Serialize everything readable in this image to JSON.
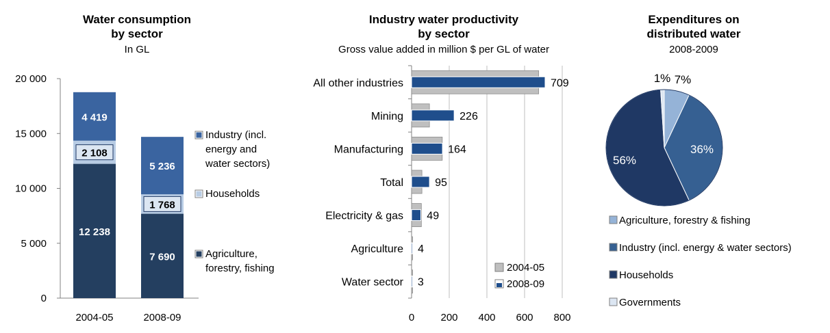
{
  "charts": [
    {
      "title_line1": "Water consumption",
      "title_line2": "by sector",
      "subtitle": "In GL"
    },
    {
      "title_line1": "Industry water productivity",
      "title_line2": "by sector",
      "subtitle": "Gross value added in million $ per GL of water"
    },
    {
      "title_line1": "Expenditures on",
      "title_line2": "distributed water",
      "subtitle": "2008-2009"
    }
  ],
  "legend1": [
    {
      "lines": [
        "Industry (incl.",
        "energy and",
        "water sectors)"
      ],
      "color": "#3a64a0"
    },
    {
      "lines": [
        "Households"
      ],
      "color": "#b8cce4"
    },
    {
      "lines": [
        "Agriculture,",
        "forestry, fishing"
      ],
      "color": "#243f60"
    }
  ],
  "legend3": [
    {
      "label": "Agriculture, forestry & fishing",
      "color": "#95b3d7"
    },
    {
      "label": "Industry (incl. energy & water sectors)",
      "color": "#366092"
    },
    {
      "label": "Households",
      "color": "#1f3864"
    },
    {
      "label": "Governments",
      "color": "#dce6f2"
    }
  ],
  "chart_data": [
    {
      "type": "bar",
      "stacked": true,
      "title": "Water consumption by sector",
      "subtitle": "In GL",
      "categories": [
        "2004-05",
        "2008-09"
      ],
      "series": [
        {
          "name": "Agriculture, forestry, fishing",
          "values": [
            12238,
            7690
          ],
          "labels": [
            "12 238",
            "7 690"
          ],
          "color": "#243f60"
        },
        {
          "name": "Households",
          "values": [
            2108,
            1768
          ],
          "labels": [
            "2 108",
            "1 768"
          ],
          "color": "#b8cce4"
        },
        {
          "name": "Industry (incl. energy and water sectors)",
          "values": [
            4419,
            5236
          ],
          "labels": [
            "4 419",
            "5 236"
          ],
          "color": "#3a64a0"
        }
      ],
      "ylim": [
        0,
        20000
      ],
      "yticks": [
        0,
        5000,
        10000,
        15000,
        20000
      ],
      "ytick_labels": [
        "0",
        "5 000",
        "10 000",
        "15 000",
        "20 000"
      ],
      "grid": false,
      "legend": "right"
    },
    {
      "type": "bar",
      "orientation": "horizontal",
      "title": "Industry water productivity by sector",
      "subtitle": "Gross value added in million $ per GL of water",
      "categories": [
        "All other industries",
        "Mining",
        "Manufacturing",
        "Total",
        "Electricity & gas",
        "Agriculture",
        "Water sector"
      ],
      "series": [
        {
          "name": "2004-05",
          "values": [
            675,
            95,
            163,
            55,
            52,
            4,
            3
          ],
          "color": "#bfbfbf"
        },
        {
          "name": "2008-09",
          "values": [
            709,
            226,
            164,
            95,
            49,
            4,
            3
          ],
          "labels": [
            "709",
            "226",
            "164",
            "95",
            "49",
            "4",
            "3"
          ],
          "color": "#1f4e8c"
        }
      ],
      "xlim": [
        0,
        800
      ],
      "xticks": [
        0,
        200,
        400,
        600,
        800
      ],
      "grid": true,
      "legend": "bottom-right"
    },
    {
      "type": "pie",
      "title": "Expenditures on distributed water",
      "subtitle": "2008-2009",
      "categories": [
        "Agriculture, forestry & fishing",
        "Industry (incl. energy & water sectors)",
        "Households",
        "Governments"
      ],
      "values": [
        7,
        36,
        56,
        1
      ],
      "labels": [
        "7%",
        "36%",
        "56%",
        "1%"
      ],
      "legend": "bottom"
    }
  ]
}
